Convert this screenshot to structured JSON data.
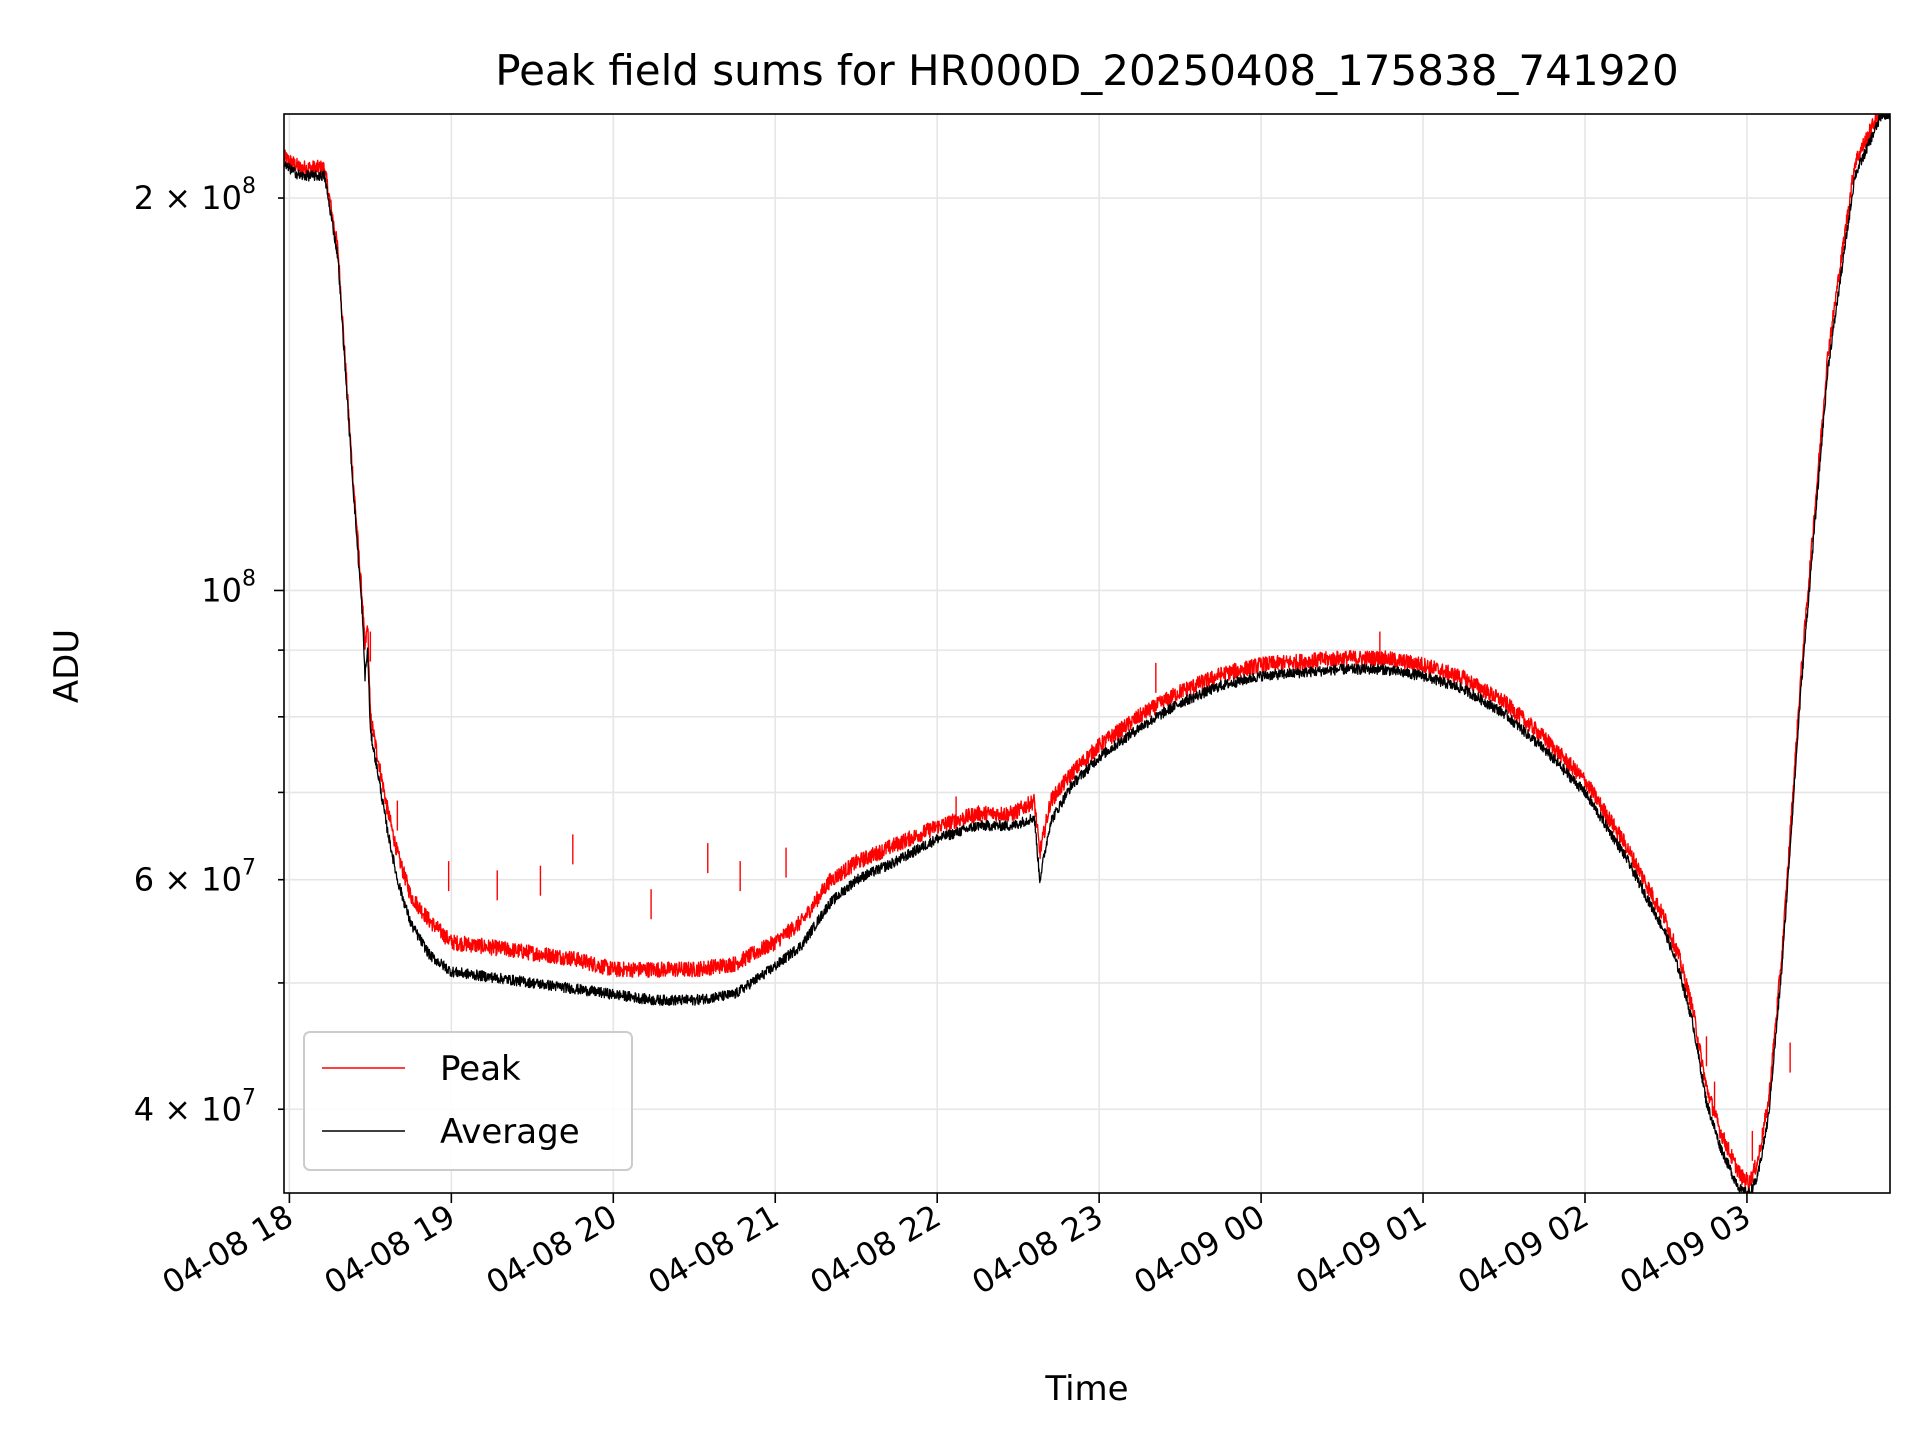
{
  "chart_data": {
    "type": "line",
    "title": "Peak field sums for HR000D_20250408_175838_741920",
    "xlabel": "Time",
    "ylabel": "ADU",
    "yscale": "log",
    "xlim": [
      "2025-04-08 17:58",
      "2025-04-09 03:53"
    ],
    "ylim": [
      34500000,
      232000000
    ],
    "grid": true,
    "legend_position": "lower-left",
    "x_tick_labels": [
      {
        "t": "2025-04-08 18:00",
        "label": "04-08 18"
      },
      {
        "t": "2025-04-08 19:00",
        "label": "04-08 19"
      },
      {
        "t": "2025-04-08 20:00",
        "label": "04-08 20"
      },
      {
        "t": "2025-04-08 21:00",
        "label": "04-08 21"
      },
      {
        "t": "2025-04-08 22:00",
        "label": "04-08 22"
      },
      {
        "t": "2025-04-08 23:00",
        "label": "04-08 23"
      },
      {
        "t": "2025-04-09 00:00",
        "label": "04-09 00"
      },
      {
        "t": "2025-04-09 01:00",
        "label": "04-09 01"
      },
      {
        "t": "2025-04-09 02:00",
        "label": "04-09 02"
      },
      {
        "t": "2025-04-09 03:00",
        "label": "04-09 03"
      }
    ],
    "y_major_ticks": [
      {
        "value": 100000000,
        "base": "10",
        "exp": "8"
      }
    ],
    "y_minor_ticks": [
      {
        "value": 40000000,
        "base": "4 × 10",
        "exp": "7"
      },
      {
        "value": 60000000,
        "base": "6 × 10",
        "exp": "7"
      },
      {
        "value": 200000000,
        "base": "2 × 10",
        "exp": "8"
      }
    ],
    "y_minor_unlabeled": [
      50000000,
      70000000,
      80000000,
      90000000
    ],
    "series": [
      {
        "name": "Peak",
        "color": "#ff0000",
        "x": [
          "2025-04-08 17:58",
          "2025-04-08 18:04",
          "2025-04-08 18:13",
          "2025-04-08 18:18",
          "2025-04-08 18:23",
          "2025-04-08 18:27",
          "2025-04-08 18:28",
          "2025-04-08 18:29",
          "2025-04-08 18:30",
          "2025-04-08 18:33",
          "2025-04-08 18:36",
          "2025-04-08 18:40",
          "2025-04-08 18:45",
          "2025-04-08 18:52",
          "2025-04-08 19:00",
          "2025-04-08 19:15",
          "2025-04-08 19:30",
          "2025-04-08 19:45",
          "2025-04-08 20:00",
          "2025-04-08 20:15",
          "2025-04-08 20:30",
          "2025-04-08 20:45",
          "2025-04-08 21:00",
          "2025-04-08 21:10",
          "2025-04-08 21:20",
          "2025-04-08 21:30",
          "2025-04-08 21:45",
          "2025-04-08 22:00",
          "2025-04-08 22:15",
          "2025-04-08 22:28",
          "2025-04-08 22:36",
          "2025-04-08 22:38",
          "2025-04-08 22:42",
          "2025-04-08 22:50",
          "2025-04-08 23:00",
          "2025-04-08 23:15",
          "2025-04-08 23:30",
          "2025-04-08 23:45",
          "2025-04-09 00:00",
          "2025-04-09 00:15",
          "2025-04-09 00:30",
          "2025-04-09 00:45",
          "2025-04-09 01:00",
          "2025-04-09 01:15",
          "2025-04-09 01:30",
          "2025-04-09 01:45",
          "2025-04-09 02:00",
          "2025-04-09 02:15",
          "2025-04-09 02:30",
          "2025-04-09 02:35",
          "2025-04-09 02:40",
          "2025-04-09 02:45",
          "2025-04-09 02:50",
          "2025-04-09 02:55",
          "2025-04-09 02:58",
          "2025-04-09 03:01",
          "2025-04-09 03:04",
          "2025-04-09 03:08",
          "2025-04-09 03:13",
          "2025-04-09 03:20",
          "2025-04-09 03:30",
          "2025-04-09 03:40",
          "2025-04-09 03:50",
          "2025-04-09 03:53"
        ],
        "y": [
          212000000,
          208000000,
          208000000,
          180000000,
          125000000,
          97000000,
          89000000,
          93000000,
          79000000,
          73000000,
          67500000,
          62000000,
          57500000,
          55000000,
          53000000,
          52500000,
          52000000,
          51500000,
          50500000,
          50500000,
          50500000,
          51000000,
          53000000,
          55000000,
          59000000,
          61000000,
          63000000,
          65000000,
          66500000,
          66500000,
          68000000,
          62000000,
          68000000,
          71500000,
          75000000,
          79000000,
          82500000,
          85000000,
          86500000,
          87000000,
          87500000,
          87500000,
          86500000,
          84500000,
          81000000,
          76000000,
          70500000,
          63000000,
          55000000,
          51500000,
          47000000,
          41000000,
          38000000,
          36000000,
          35000000,
          34700000,
          36000000,
          40000000,
          52000000,
          85000000,
          150000000,
          210000000,
          232000000,
          232000000
        ],
        "spikes": [
          {
            "x": "2025-04-08 18:30",
            "y": 93000000
          },
          {
            "x": "2025-04-08 18:40",
            "y": 69000000
          },
          {
            "x": "2025-04-08 18:59",
            "y": 62000000
          },
          {
            "x": "2025-04-08 19:17",
            "y": 61000000
          },
          {
            "x": "2025-04-08 19:33",
            "y": 61500000
          },
          {
            "x": "2025-04-08 19:45",
            "y": 65000000
          },
          {
            "x": "2025-04-08 20:14",
            "y": 59000000
          },
          {
            "x": "2025-04-08 20:35",
            "y": 64000000
          },
          {
            "x": "2025-04-08 20:47",
            "y": 62000000
          },
          {
            "x": "2025-04-08 21:04",
            "y": 63500000
          },
          {
            "x": "2025-04-08 22:07",
            "y": 69500000
          },
          {
            "x": "2025-04-08 23:21",
            "y": 88000000
          },
          {
            "x": "2025-04-09 00:44",
            "y": 93000000
          },
          {
            "x": "2025-04-09 02:45",
            "y": 45500000
          },
          {
            "x": "2025-04-09 02:48",
            "y": 42000000
          },
          {
            "x": "2025-04-09 03:02",
            "y": 38500000
          },
          {
            "x": "2025-04-09 03:16",
            "y": 45000000
          }
        ]
      },
      {
        "name": "Average",
        "color": "#000000",
        "x": [
          "2025-04-08 17:58",
          "2025-04-08 18:04",
          "2025-04-08 18:13",
          "2025-04-08 18:18",
          "2025-04-08 18:23",
          "2025-04-08 18:27",
          "2025-04-08 18:28",
          "2025-04-08 18:29",
          "2025-04-08 18:30",
          "2025-04-08 18:33",
          "2025-04-08 18:36",
          "2025-04-08 18:40",
          "2025-04-08 18:45",
          "2025-04-08 18:52",
          "2025-04-08 19:00",
          "2025-04-08 19:15",
          "2025-04-08 19:30",
          "2025-04-08 19:45",
          "2025-04-08 20:00",
          "2025-04-08 20:15",
          "2025-04-08 20:30",
          "2025-04-08 20:45",
          "2025-04-08 21:00",
          "2025-04-08 21:10",
          "2025-04-08 21:20",
          "2025-04-08 21:30",
          "2025-04-08 21:45",
          "2025-04-08 22:00",
          "2025-04-08 22:15",
          "2025-04-08 22:28",
          "2025-04-08 22:36",
          "2025-04-08 22:38",
          "2025-04-08 22:42",
          "2025-04-08 22:50",
          "2025-04-08 23:00",
          "2025-04-08 23:15",
          "2025-04-08 23:30",
          "2025-04-08 23:45",
          "2025-04-09 00:00",
          "2025-04-09 00:15",
          "2025-04-09 00:30",
          "2025-04-09 00:45",
          "2025-04-09 01:00",
          "2025-04-09 01:15",
          "2025-04-09 01:30",
          "2025-04-09 01:45",
          "2025-04-09 02:00",
          "2025-04-09 02:15",
          "2025-04-09 02:30",
          "2025-04-09 02:35",
          "2025-04-09 02:40",
          "2025-04-09 02:45",
          "2025-04-09 02:50",
          "2025-04-09 02:55",
          "2025-04-09 02:58",
          "2025-04-09 03:01",
          "2025-04-09 03:04",
          "2025-04-09 03:08",
          "2025-04-09 03:13",
          "2025-04-09 03:20",
          "2025-04-09 03:30",
          "2025-04-09 03:40",
          "2025-04-09 03:50",
          "2025-04-09 03:53"
        ],
        "y": [
          212000000,
          208000000,
          208000000,
          180000000,
          125000000,
          96000000,
          86000000,
          90000000,
          78000000,
          72000000,
          66000000,
          60000000,
          55500000,
          52500000,
          51000000,
          50500000,
          50000000,
          49500000,
          49000000,
          48500000,
          48500000,
          49000000,
          51500000,
          53500000,
          57500000,
          60000000,
          62000000,
          64500000,
          66000000,
          66000000,
          67000000,
          60000000,
          66500000,
          71000000,
          74500000,
          78500000,
          82000000,
          84500000,
          86000000,
          86500000,
          87000000,
          87000000,
          86000000,
          84000000,
          80500000,
          75500000,
          70000000,
          62500000,
          54500000,
          51000000,
          46500000,
          40500000,
          37500000,
          35500000,
          34600000,
          34500000,
          35500000,
          39500000,
          51500000,
          84000000,
          148000000,
          208000000,
          232000000,
          232000000
        ]
      }
    ]
  }
}
